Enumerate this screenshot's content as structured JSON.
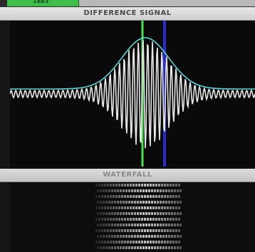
{
  "top_tabs": {
    "left": "1883",
    "right": ""
  },
  "difference_panel": {
    "title": "DIFFERENCE SIGNAL"
  },
  "waterfall_panel": {
    "title": "WATERFALL"
  },
  "colors": {
    "signal": "#e6e6e6",
    "envelope": "#59d6d6",
    "green_marker": "#48e24e",
    "blue_marker": "#2a2bd4",
    "background": "#0a0a0a"
  }
}
